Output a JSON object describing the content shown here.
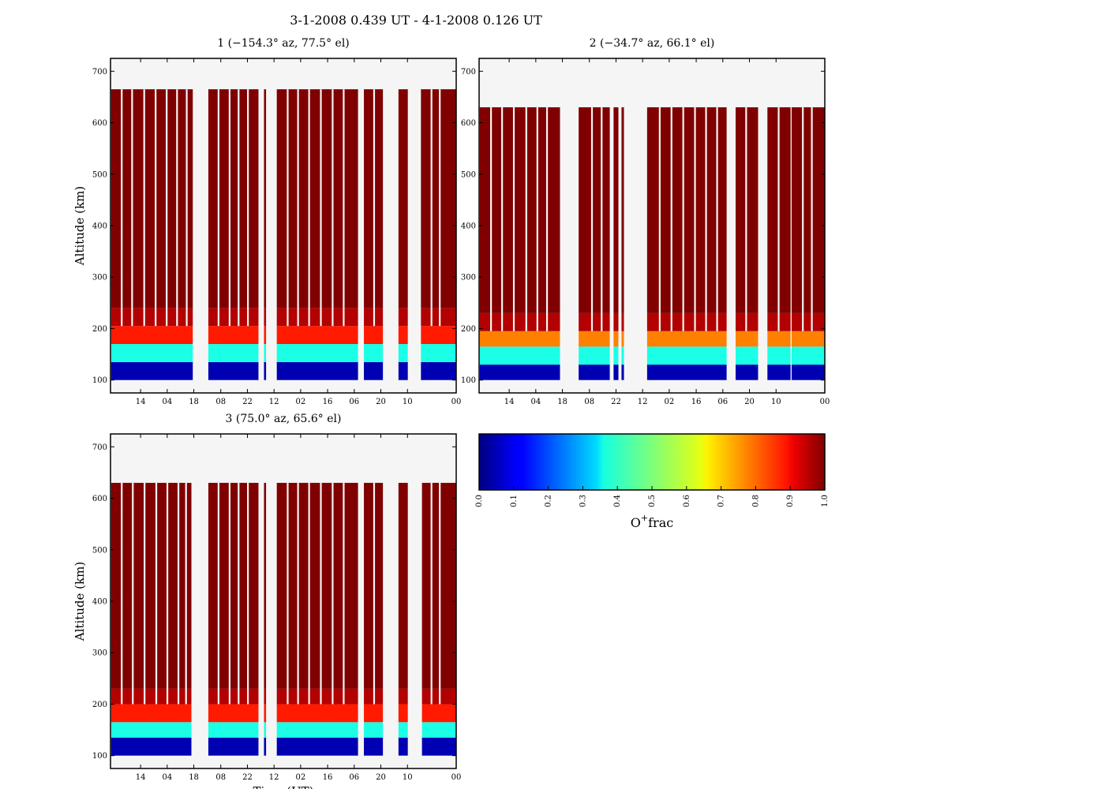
{
  "figure_title": "3-1-2008 0.439 UT - 4-1-2008 0.126 UT",
  "colors": {
    "background": "#f5f5f5",
    "frame": "#000000",
    "bands": [
      "#0000c8",
      "#3cffc8",
      "#ff5000",
      "#9b0000",
      "#800000"
    ]
  },
  "colorbar": {
    "label_main": "O",
    "label_sup": "+",
    "label_rest": "frac",
    "ticks": [
      "0.0",
      "0.1",
      "0.2",
      "0.3",
      "0.4",
      "0.5",
      "0.6",
      "0.7",
      "0.8",
      "0.9",
      "1.0"
    ],
    "colormap": "jet"
  },
  "chart_data": [
    {
      "type": "heatmap",
      "title": "1 (−154.3° az, 77.5° el)",
      "xlabel": "",
      "ylabel": "Altitude (km)",
      "xlim": [
        0,
        100
      ],
      "ylim": [
        75,
        725
      ],
      "yticks": [
        100,
        200,
        300,
        400,
        500,
        600,
        700
      ],
      "yticklabels": [
        "100",
        "200",
        "300",
        "400",
        "500",
        "600",
        "700"
      ],
      "xtick_labels": [
        "14",
        "04",
        "18",
        "08",
        "22",
        "12",
        "02",
        "16",
        "06",
        "20",
        "10",
        "00"
      ],
      "xtick_pos": [
        8.7,
        16.4,
        24.1,
        31.9,
        39.6,
        47.3,
        55.0,
        62.8,
        70.5,
        78.2,
        85.9,
        100
      ],
      "bands": [
        {
          "from": 100,
          "to": 135,
          "value": 0.05
        },
        {
          "from": 135,
          "to": 170,
          "value": 0.4
        },
        {
          "from": 170,
          "to": 205,
          "value": 0.85
        },
        {
          "from": 205,
          "to": 240,
          "value": 0.95
        },
        {
          "from": 240,
          "to": 665,
          "value": 1.0
        }
      ],
      "top_km": 665,
      "data_segments": [
        [
          0.2,
          23.8
        ],
        [
          28.3,
          42.8
        ],
        [
          44.4,
          45.0
        ],
        [
          48.1,
          71.6
        ],
        [
          73.3,
          78.8
        ],
        [
          83.3,
          86.0
        ],
        [
          89.8,
          100
        ]
      ],
      "interior_gaps": [
        3.0,
        6.0,
        9.5,
        12.8,
        16.0,
        19.0,
        21.8,
        31.0,
        34.2,
        36.8,
        39.5,
        51.0,
        54.0,
        57.2,
        60.6,
        64.0,
        67.2,
        76.0,
        92.6,
        95.0
      ],
      "upper_from_km": 205
    },
    {
      "type": "heatmap",
      "title": "2 (−34.7° az, 66.1° el)",
      "xlabel": "",
      "ylabel": "",
      "xlim": [
        0,
        100
      ],
      "ylim": [
        75,
        725
      ],
      "yticks": [
        100,
        200,
        300,
        400,
        500,
        600,
        700
      ],
      "yticklabels": [
        "100",
        "200",
        "300",
        "400",
        "500",
        "600",
        "700"
      ],
      "xtick_labels": [
        "14",
        "04",
        "18",
        "08",
        "22",
        "12",
        "02",
        "16",
        "06",
        "20",
        "10",
        "00"
      ],
      "xtick_pos": [
        8.7,
        16.4,
        24.1,
        31.9,
        39.6,
        47.3,
        55.0,
        62.8,
        70.5,
        78.2,
        85.9,
        100
      ],
      "bands": [
        {
          "from": 100,
          "to": 130,
          "value": 0.05
        },
        {
          "from": 130,
          "to": 165,
          "value": 0.4
        },
        {
          "from": 165,
          "to": 195,
          "value": 0.75
        },
        {
          "from": 195,
          "to": 230,
          "value": 0.95
        },
        {
          "from": 230,
          "to": 630,
          "value": 1.0
        }
      ],
      "top_km": 630,
      "data_segments": [
        [
          0.2,
          23.4
        ],
        [
          28.8,
          37.8
        ],
        [
          38.9,
          40.3
        ],
        [
          41.2,
          41.9
        ],
        [
          48.6,
          71.6
        ],
        [
          74.2,
          80.7
        ],
        [
          83.4,
          90.1
        ],
        [
          90.4,
          100
        ]
      ],
      "interior_gaps": [
        3.2,
        6.4,
        9.8,
        13.4,
        16.6,
        19.4,
        32.4,
        35.2,
        52.0,
        55.4,
        58.8,
        62.2,
        65.4,
        68.6,
        77.0,
        86.4,
        93.4,
        96.0
      ],
      "upper_from_km": 195
    },
    {
      "type": "heatmap",
      "title": "3 (75.0° az, 65.6° el)",
      "xlabel": "Time (UT)",
      "ylabel": "Altitude (km)",
      "xlim": [
        0,
        100
      ],
      "ylim": [
        75,
        725
      ],
      "yticks": [
        100,
        200,
        300,
        400,
        500,
        600,
        700
      ],
      "yticklabels": [
        "100",
        "200",
        "300",
        "400",
        "500",
        "600",
        "700"
      ],
      "xtick_labels": [
        "14",
        "04",
        "18",
        "08",
        "22",
        "12",
        "02",
        "16",
        "06",
        "20",
        "10",
        "00"
      ],
      "xtick_pos": [
        8.7,
        16.4,
        24.1,
        31.9,
        39.6,
        47.3,
        55.0,
        62.8,
        70.5,
        78.2,
        85.9,
        100
      ],
      "bands": [
        {
          "from": 100,
          "to": 135,
          "value": 0.05
        },
        {
          "from": 135,
          "to": 165,
          "value": 0.4
        },
        {
          "from": 165,
          "to": 200,
          "value": 0.85
        },
        {
          "from": 200,
          "to": 230,
          "value": 0.95
        },
        {
          "from": 230,
          "to": 630,
          "value": 1.0
        }
      ],
      "top_km": 630,
      "data_segments": [
        [
          0.2,
          23.4
        ],
        [
          28.3,
          42.8
        ],
        [
          44.4,
          45.0
        ],
        [
          48.1,
          71.6
        ],
        [
          73.3,
          78.8
        ],
        [
          83.3,
          86.0
        ],
        [
          90.1,
          100
        ]
      ],
      "interior_gaps": [
        3.0,
        6.2,
        9.6,
        13.0,
        16.2,
        19.4,
        21.6,
        31.0,
        34.2,
        36.8,
        39.5,
        51.0,
        54.0,
        57.2,
        60.6,
        64.0,
        67.2,
        76.0,
        92.6,
        95.0
      ],
      "upper_from_km": 200
    }
  ]
}
